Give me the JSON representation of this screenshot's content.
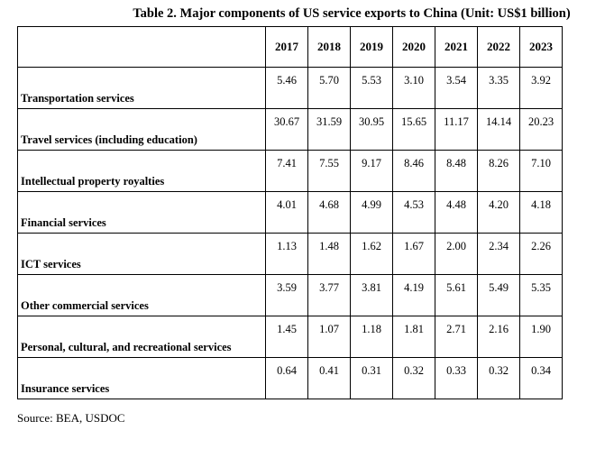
{
  "title": "Table 2. Major components of US service exports to China (Unit: US$1 billion)",
  "table": {
    "header": {
      "corner": "",
      "years": [
        "2017",
        "2018",
        "2019",
        "2020",
        "2021",
        "2022",
        "2023"
      ]
    },
    "rows": [
      {
        "label": "Transportation services",
        "values": [
          "5.46",
          "5.70",
          "5.53",
          "3.10",
          "3.54",
          "3.35",
          "3.92"
        ]
      },
      {
        "label": "Travel services (including education)",
        "values": [
          "30.67",
          "31.59",
          "30.95",
          "15.65",
          "11.17",
          "14.14",
          "20.23"
        ]
      },
      {
        "label": "Intellectual property royalties",
        "values": [
          "7.41",
          "7.55",
          "9.17",
          "8.46",
          "8.48",
          "8.26",
          "7.10"
        ]
      },
      {
        "label": "Financial services",
        "values": [
          "4.01",
          "4.68",
          "4.99",
          "4.53",
          "4.48",
          "4.20",
          "4.18"
        ]
      },
      {
        "label": "ICT services",
        "values": [
          "1.13",
          "1.48",
          "1.62",
          "1.67",
          "2.00",
          "2.34",
          "2.26"
        ]
      },
      {
        "label": "Other commercial services",
        "values": [
          "3.59",
          "3.77",
          "3.81",
          "4.19",
          "5.61",
          "5.49",
          "5.35"
        ]
      },
      {
        "label": "Personal, cultural, and recreational services",
        "values": [
          "1.45",
          "1.07",
          "1.18",
          "1.81",
          "2.71",
          "2.16",
          "1.90"
        ]
      },
      {
        "label": "Insurance services",
        "values": [
          "0.64",
          "0.41",
          "0.31",
          "0.32",
          "0.33",
          "0.32",
          "0.34"
        ]
      }
    ]
  },
  "source": "Source: BEA, USDOC"
}
